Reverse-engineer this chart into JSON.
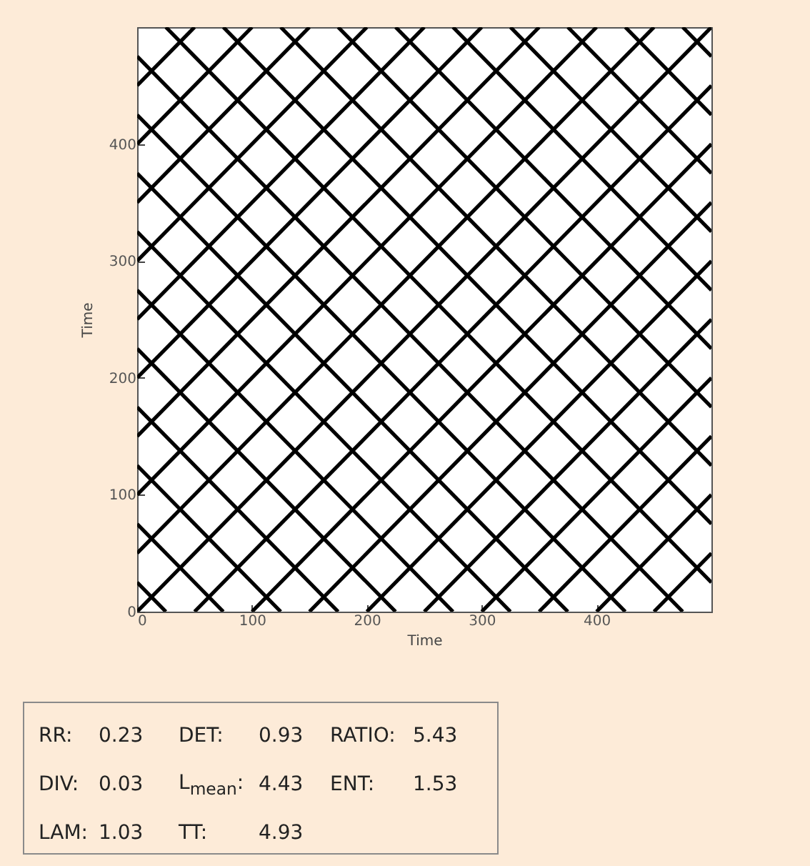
{
  "chart_data": [
    {
      "type": "line",
      "xlabel": "Time",
      "ylabel": "Time",
      "xlim": [
        0,
        500
      ],
      "ylim": [
        0,
        500
      ],
      "xticks": [
        0,
        100,
        200,
        300,
        400
      ],
      "yticks": [
        0,
        100,
        200,
        300,
        400
      ],
      "grid": false,
      "line_style": "solid",
      "series": [
        {
          "color": "#000000",
          "x": [
            0,
            50
          ],
          "values": [
            450,
            500
          ]
        },
        {
          "color": "#000000",
          "x": [
            0,
            100
          ],
          "values": [
            400,
            500
          ]
        },
        {
          "color": "#000000",
          "x": [
            0,
            150
          ],
          "values": [
            350,
            500
          ]
        },
        {
          "color": "#000000",
          "x": [
            0,
            200
          ],
          "values": [
            300,
            500
          ]
        },
        {
          "color": "#000000",
          "x": [
            0,
            250
          ],
          "values": [
            250,
            500
          ]
        },
        {
          "color": "#000000",
          "x": [
            0,
            300
          ],
          "values": [
            200,
            500
          ]
        },
        {
          "color": "#000000",
          "x": [
            0,
            350
          ],
          "values": [
            150,
            500
          ]
        },
        {
          "color": "#000000",
          "x": [
            0,
            400
          ],
          "values": [
            100,
            500
          ]
        },
        {
          "color": "#000000",
          "x": [
            0,
            450
          ],
          "values": [
            50,
            500
          ]
        },
        {
          "color": "#000000",
          "x": [
            0,
            500
          ],
          "values": [
            0,
            500
          ]
        },
        {
          "color": "#000000",
          "x": [
            50,
            500
          ],
          "values": [
            0,
            450
          ]
        },
        {
          "color": "#000000",
          "x": [
            100,
            500
          ],
          "values": [
            0,
            400
          ]
        },
        {
          "color": "#000000",
          "x": [
            150,
            500
          ],
          "values": [
            0,
            350
          ]
        },
        {
          "color": "#000000",
          "x": [
            200,
            500
          ],
          "values": [
            0,
            300
          ]
        },
        {
          "color": "#000000",
          "x": [
            250,
            500
          ],
          "values": [
            0,
            250
          ]
        },
        {
          "color": "#000000",
          "x": [
            300,
            500
          ],
          "values": [
            0,
            200
          ]
        },
        {
          "color": "#000000",
          "x": [
            350,
            500
          ],
          "values": [
            0,
            150
          ]
        },
        {
          "color": "#000000",
          "x": [
            400,
            500
          ],
          "values": [
            0,
            100
          ]
        },
        {
          "color": "#000000",
          "x": [
            450,
            500
          ],
          "values": [
            0,
            50
          ]
        },
        {
          "color": "#000000",
          "x": [
            0,
            25
          ],
          "values": [
            25,
            0
          ]
        },
        {
          "color": "#000000",
          "x": [
            0,
            75
          ],
          "values": [
            75,
            0
          ]
        },
        {
          "color": "#000000",
          "x": [
            0,
            125
          ],
          "values": [
            125,
            0
          ]
        },
        {
          "color": "#000000",
          "x": [
            0,
            175
          ],
          "values": [
            175,
            0
          ]
        },
        {
          "color": "#000000",
          "x": [
            0,
            225
          ],
          "values": [
            225,
            0
          ]
        },
        {
          "color": "#000000",
          "x": [
            0,
            275
          ],
          "values": [
            275,
            0
          ]
        },
        {
          "color": "#000000",
          "x": [
            0,
            325
          ],
          "values": [
            325,
            0
          ]
        },
        {
          "color": "#000000",
          "x": [
            0,
            375
          ],
          "values": [
            375,
            0
          ]
        },
        {
          "color": "#000000",
          "x": [
            0,
            425
          ],
          "values": [
            425,
            0
          ]
        },
        {
          "color": "#000000",
          "x": [
            0,
            475
          ],
          "values": [
            475,
            0
          ]
        },
        {
          "color": "#000000",
          "x": [
            25,
            500
          ],
          "values": [
            500,
            25
          ]
        },
        {
          "color": "#000000",
          "x": [
            75,
            500
          ],
          "values": [
            500,
            75
          ]
        },
        {
          "color": "#000000",
          "x": [
            125,
            500
          ],
          "values": [
            500,
            125
          ]
        },
        {
          "color": "#000000",
          "x": [
            175,
            500
          ],
          "values": [
            500,
            175
          ]
        },
        {
          "color": "#000000",
          "x": [
            225,
            500
          ],
          "values": [
            500,
            225
          ]
        },
        {
          "color": "#000000",
          "x": [
            275,
            500
          ],
          "values": [
            500,
            275
          ]
        },
        {
          "color": "#000000",
          "x": [
            325,
            500
          ],
          "values": [
            500,
            325
          ]
        },
        {
          "color": "#000000",
          "x": [
            375,
            500
          ],
          "values": [
            500,
            375
          ]
        },
        {
          "color": "#000000",
          "x": [
            425,
            500
          ],
          "values": [
            500,
            425
          ]
        },
        {
          "color": "#000000",
          "x": [
            475,
            500
          ],
          "values": [
            500,
            475
          ]
        }
      ]
    },
    {
      "type": "other",
      "annotations": [
        "RR:",
        "0.23",
        "DET:",
        "0.93",
        "RATIO:",
        "5.43",
        "DIV:",
        "0.03",
        "L$_{mean}$:",
        "4.43",
        "ENT:",
        "1.53",
        "LAM:",
        "1.03",
        "TT:",
        "4.93"
      ]
    }
  ]
}
